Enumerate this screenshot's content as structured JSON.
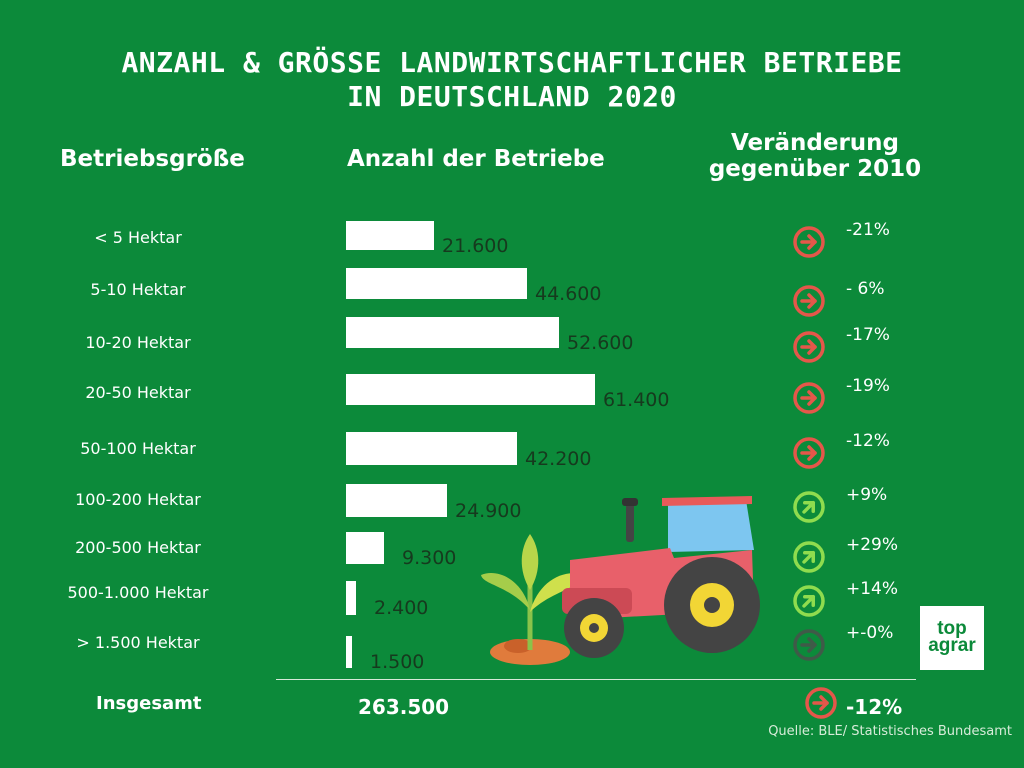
{
  "title_line1": "ANZAHL & GRÖSSE LANDWIRTSCHAFTLICHER BETRIEBE",
  "title_line2": "IN DEUTSCHLAND 2020",
  "headers": {
    "size": "Betriebsgröße",
    "count": "Anzahl der Betriebe",
    "change_line1": "Veränderung",
    "change_line2": "gegenüber 2010"
  },
  "rows": [
    {
      "label": "< 5 Hektar",
      "value_text": "21.600",
      "change": "-21%",
      "trend": "down"
    },
    {
      "label": "5-10 Hektar",
      "value_text": "44.600",
      "change": "- 6%",
      "trend": "down"
    },
    {
      "label": "10-20 Hektar",
      "value_text": "52.600",
      "change": "-17%",
      "trend": "down"
    },
    {
      "label": "20-50 Hektar",
      "value_text": "61.400",
      "change": "-19%",
      "trend": "down"
    },
    {
      "label": "50-100 Hektar",
      "value_text": "42.200",
      "change": "-12%",
      "trend": "down"
    },
    {
      "label": "100-200 Hektar",
      "value_text": "24.900",
      "change": "+9%",
      "trend": "up"
    },
    {
      "label": "200-500 Hektar",
      "value_text": "9.300",
      "change": "+29%",
      "trend": "up"
    },
    {
      "label": "500-1.000 Hektar",
      "value_text": "2.400",
      "change": "+14%",
      "trend": "up"
    },
    {
      "label": "> 1.500 Hektar",
      "value_text": "1.500",
      "change": "+-0%",
      "trend": "flat"
    }
  ],
  "total": {
    "label": "Insgesamt",
    "value": "263.500",
    "change": "-12%",
    "trend": "down"
  },
  "source": "Quelle: BLE/ Statistisches Bundesamt",
  "logo": {
    "line1": "top",
    "line2": "agrar"
  },
  "colors": {
    "background": "#0c8a3a",
    "bar": "#ffffff",
    "value_text": "#163a1e",
    "trend_down": "#e5574a",
    "trend_up": "#8fdc4e",
    "trend_flat": "#3f5a48"
  },
  "chart_data": {
    "type": "bar",
    "orientation": "horizontal",
    "categories": [
      "< 5 Hektar",
      "5-10 Hektar",
      "10-20 Hektar",
      "20-50 Hektar",
      "50-100 Hektar",
      "100-200 Hektar",
      "200-500 Hektar",
      "500-1.000 Hektar",
      "> 1.500 Hektar"
    ],
    "values": [
      21600,
      44600,
      52600,
      61400,
      42200,
      24900,
      9300,
      2400,
      1500
    ],
    "change_vs_2010_percent": [
      -21,
      -6,
      -17,
      -19,
      -12,
      9,
      29,
      14,
      0
    ],
    "total": 263500,
    "total_change_percent": -12
  }
}
